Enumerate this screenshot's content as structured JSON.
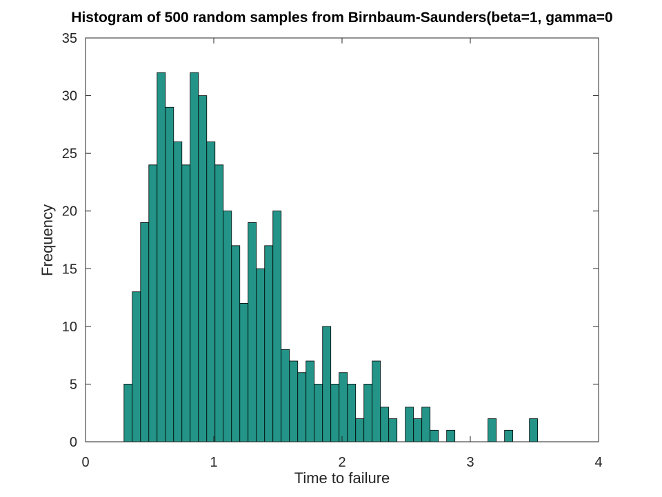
{
  "chart_data": {
    "type": "histogram",
    "title": "Histogram of 500 random samples from Birnbaum-Saunders(beta=1, gamma=0",
    "xlabel": "Time to failure",
    "ylabel": "Frequency",
    "bins": [
      0.3,
      0.3645,
      0.429,
      0.4935,
      0.558,
      0.6225,
      0.687,
      0.7515,
      0.816,
      0.8805,
      0.945,
      1.0095,
      1.074,
      1.1385,
      1.203,
      1.2675,
      1.332,
      1.3965,
      1.461,
      1.5255,
      1.59,
      1.6545,
      1.719,
      1.7835,
      1.848,
      1.9125,
      1.977,
      2.0415,
      2.106,
      2.1705,
      2.235,
      2.2995,
      2.364,
      2.4285,
      2.493,
      2.5575,
      2.622,
      2.6865,
      2.751,
      2.8155,
      2.88,
      2.9445,
      3.009,
      3.0735,
      3.138,
      3.2025,
      3.267,
      3.3315,
      3.396,
      3.4605,
      3.525
    ],
    "values": [
      5,
      13,
      19,
      24,
      32,
      29,
      26,
      24,
      32,
      30,
      26,
      24,
      20,
      17,
      12,
      19,
      15,
      17,
      20,
      8,
      7,
      6,
      7,
      5,
      10,
      5,
      6,
      5,
      2,
      5,
      7,
      3,
      2,
      0,
      3,
      2,
      3,
      1,
      0,
      1,
      0,
      0,
      0,
      0,
      2,
      0,
      1,
      0,
      0,
      2
    ],
    "color": "#239487",
    "xlim": [
      0,
      4
    ],
    "xticks": [
      0,
      1,
      2,
      3,
      4
    ],
    "ylim": [
      0,
      35
    ],
    "yticks": [
      0,
      5,
      10,
      15,
      20,
      25,
      30,
      35
    ],
    "grid": false
  }
}
